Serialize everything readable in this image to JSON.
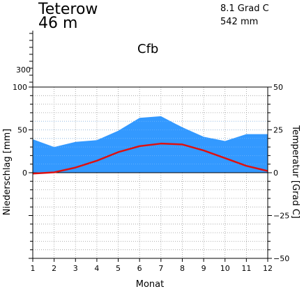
{
  "chart_data": {
    "type": "area",
    "station": "Teterow",
    "elevation": "46 m",
    "mean_temperature": "8.1 Grad C",
    "annual_precipitation": "542 mm",
    "climate_class": "Cfb",
    "xlabel": "Monat",
    "ylabel_left": "Niederschlag [mm]",
    "ylabel_right": "Temperatur [Grad C]",
    "categories": [
      "1",
      "2",
      "3",
      "4",
      "5",
      "6",
      "7",
      "8",
      "9",
      "10",
      "11",
      "12"
    ],
    "precip_ylim": [
      -100,
      100
    ],
    "temp_ylim": [
      -50,
      50
    ],
    "precip_ticks": [
      "0",
      "50",
      "100"
    ],
    "precip_extra_tick": "300",
    "temp_ticks": [
      "−50",
      "−25",
      "0",
      "25",
      "50"
    ],
    "series": [
      {
        "name": "Niederschlag",
        "unit": "mm",
        "color": "#3399ff",
        "values": [
          39,
          30,
          36,
          38,
          49,
          64,
          66,
          53,
          42,
          37,
          45,
          45
        ]
      },
      {
        "name": "Temperatur",
        "unit": "Grad C",
        "color": "#dd1111",
        "values": [
          -0.5,
          0.2,
          3.0,
          7.0,
          12.0,
          15.5,
          17.0,
          16.5,
          13.0,
          8.5,
          4.0,
          1.0
        ]
      }
    ],
    "grid": true
  }
}
